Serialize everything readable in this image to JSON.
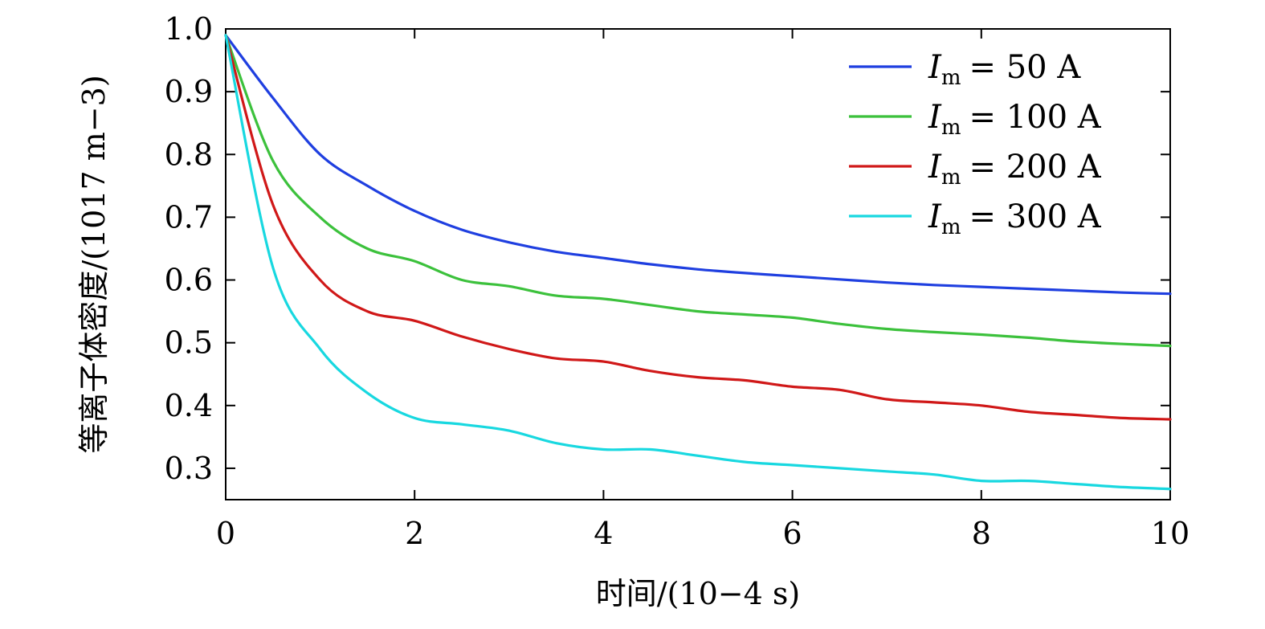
{
  "chart_data": {
    "type": "line",
    "title": "",
    "xlabel": "时间/(10−4 s)",
    "ylabel": "等离子体密度/(1017 m−3)",
    "xlim": [
      0,
      10
    ],
    "ylim": [
      0.25,
      1.0
    ],
    "xticks": [
      0,
      2,
      4,
      6,
      8,
      10
    ],
    "xtick_labels": [
      "0",
      "2",
      "4",
      "6",
      "8",
      "10"
    ],
    "yticks": [
      0.3,
      0.4,
      0.5,
      0.6,
      0.7,
      0.8,
      0.9,
      1.0
    ],
    "ytick_labels": [
      "0.3",
      "0.4",
      "0.5",
      "0.6",
      "0.7",
      "0.8",
      "0.9",
      "1.0"
    ],
    "grid": false,
    "legend_position": "top-right",
    "x": [
      0,
      0.5,
      1,
      1.5,
      2,
      2.5,
      3,
      3.5,
      4,
      4.5,
      5,
      5.5,
      6,
      6.5,
      7,
      7.5,
      8,
      8.5,
      9,
      9.5,
      10
    ],
    "series": [
      {
        "name": "Im = 50 A",
        "legend_label": "= 50  A",
        "color": "#1f3fe0",
        "values": [
          0.99,
          0.89,
          0.8,
          0.75,
          0.71,
          0.68,
          0.66,
          0.645,
          0.635,
          0.625,
          0.617,
          0.611,
          0.606,
          0.601,
          0.596,
          0.592,
          0.589,
          0.586,
          0.583,
          0.58,
          0.578
        ]
      },
      {
        "name": "Im = 100 A",
        "legend_label": "= 100  A",
        "color": "#3cc13c",
        "values": [
          0.99,
          0.79,
          0.7,
          0.65,
          0.63,
          0.6,
          0.59,
          0.575,
          0.57,
          0.56,
          0.55,
          0.545,
          0.54,
          0.53,
          0.522,
          0.517,
          0.513,
          0.508,
          0.502,
          0.498,
          0.495
        ]
      },
      {
        "name": "Im = 200 A",
        "legend_label": "= 200  A",
        "color": "#d01818",
        "values": [
          0.99,
          0.72,
          0.6,
          0.55,
          0.535,
          0.51,
          0.49,
          0.475,
          0.47,
          0.455,
          0.445,
          0.44,
          0.43,
          0.425,
          0.41,
          0.405,
          0.4,
          0.39,
          0.385,
          0.38,
          0.378
        ]
      },
      {
        "name": "Im = 300 A",
        "legend_label": "= 300  A",
        "color": "#18d8e0",
        "values": [
          0.99,
          0.62,
          0.49,
          0.42,
          0.38,
          0.37,
          0.36,
          0.34,
          0.33,
          0.33,
          0.32,
          0.31,
          0.305,
          0.3,
          0.295,
          0.29,
          0.28,
          0.28,
          0.275,
          0.27,
          0.267
        ]
      }
    ]
  }
}
